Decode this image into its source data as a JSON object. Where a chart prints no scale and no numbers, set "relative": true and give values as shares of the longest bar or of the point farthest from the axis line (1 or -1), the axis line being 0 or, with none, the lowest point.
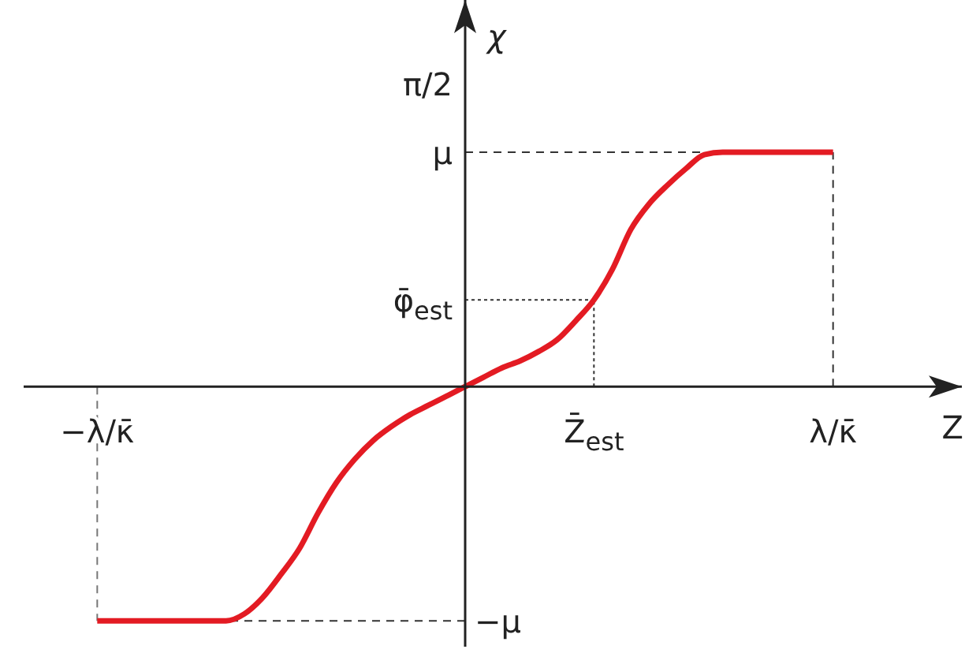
{
  "chart_data": {
    "type": "line",
    "relative": true,
    "xlabel": "Z",
    "ylabel": "χ",
    "color": "#e31b23",
    "marker": "none",
    "categories": [
      null,
      null,
      null,
      null,
      "−λ/κ̄",
      null,
      null,
      null,
      null,
      null,
      null,
      null,
      null,
      null,
      null,
      null,
      null,
      null,
      null,
      null,
      null,
      null,
      null,
      null,
      null,
      null,
      null,
      null,
      null,
      null,
      null,
      "Z̄$_{est}$",
      null,
      null,
      null,
      null,
      null,
      null,
      null,
      null,
      null,
      null,
      null,
      null,
      "λ/κ̄",
      null,
      null,
      null,
      null,
      null,
      null,
      null
    ],
    "values": [
      null,
      null,
      null,
      null,
      -1,
      -1,
      -1,
      -1,
      -1,
      -1,
      -1,
      -1,
      -0.97,
      -0.9,
      -0.8,
      -0.69,
      -0.54,
      -0.41,
      -0.31,
      -0.23,
      -0.17,
      -0.12,
      -0.08,
      -0.04,
      0,
      0.04,
      0.08,
      0.11,
      0.15,
      0.2,
      0.28,
      0.37,
      0.5,
      0.67,
      0.78,
      0.86,
      0.93,
      0.99,
      1,
      1,
      1,
      1,
      1,
      1,
      1,
      null,
      null,
      null,
      null,
      null,
      null,
      null
    ],
    "annotations": [
      "π/2"
    ],
    "ref_lines": [
      {
        "axis": "y",
        "value": 1,
        "label": "μ",
        "line_style": "dashed",
        "color": "#333333"
      },
      {
        "axis": "x",
        "value": "λ/κ̄",
        "line_style": "dashed",
        "color": "#333333"
      },
      {
        "axis": "y",
        "value": -1,
        "label": "−μ",
        "line_style": "dashed",
        "color": "#333333"
      },
      {
        "axis": "x",
        "value": "−λ/κ̄",
        "line_style": "dashed",
        "color": "#777777"
      },
      {
        "axis": "y",
        "value": 0.37,
        "label": "φ̄$_{est}$",
        "line_style": "dotted",
        "color": "#333333"
      },
      {
        "axis": "x",
        "value": "Z̄$_{est}$",
        "line_style": "dotted",
        "color": "#333333"
      }
    ]
  }
}
